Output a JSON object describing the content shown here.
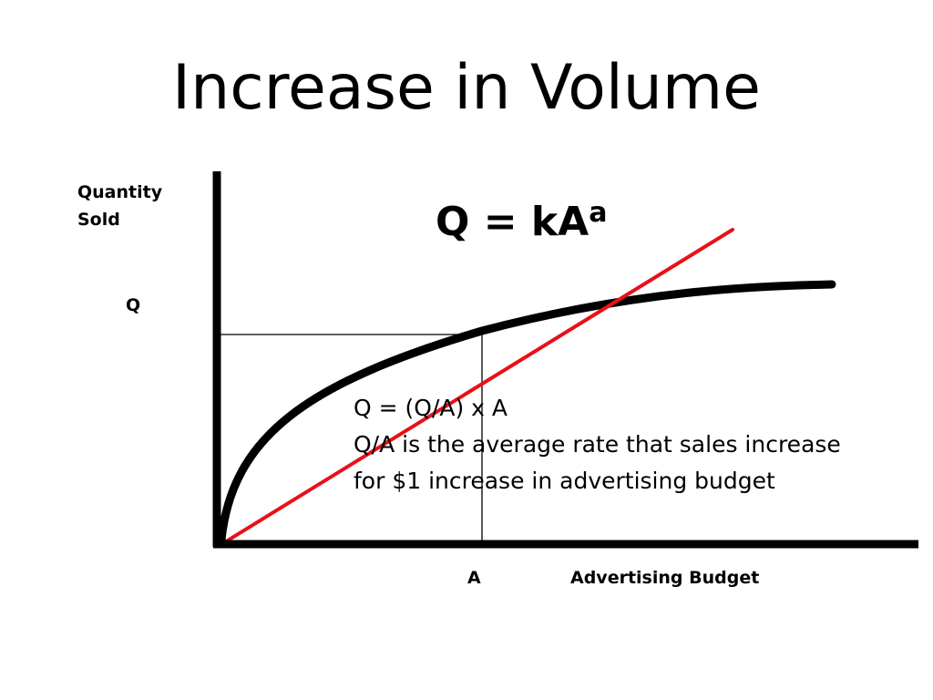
{
  "slide": {
    "title": "Increase in Volume",
    "y_axis_label": [
      "Quantity",
      "Sold"
    ],
    "x_axis_label": "Advertising Budget",
    "q_tick": "Q",
    "a_tick": "A",
    "formula": {
      "base": "Q = kA",
      "exponent": "a"
    },
    "note_lines": [
      "Q = (Q/A) x A",
      "Q/A is the average rate that sales increase",
      "for $1 increase in advertising budget"
    ],
    "colors": {
      "curve": "#000000",
      "average_rate_line": "#e8101a",
      "axes": "#000000",
      "guide_lines": "#000000"
    }
  }
}
